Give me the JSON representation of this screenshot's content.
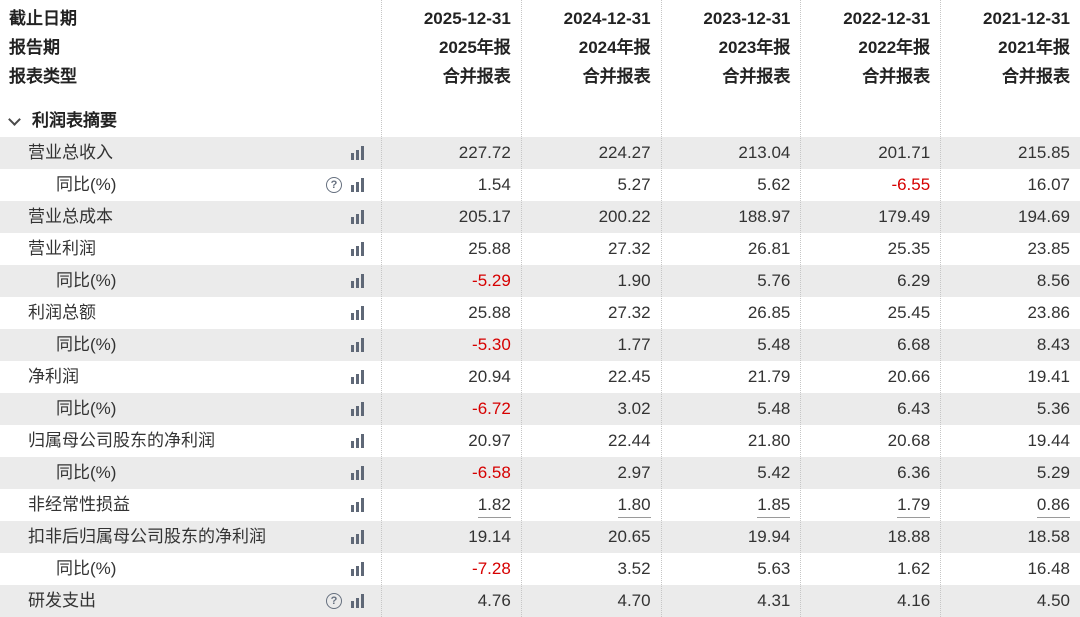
{
  "colors": {
    "negative_value": "#d60000",
    "text": "#333333",
    "shaded_row_bg": "#ebebeb",
    "icon": "#5f6877",
    "divider": "#c6c6c6"
  },
  "header": {
    "row_labels": [
      "截止日期",
      "报告期",
      "报表类型"
    ],
    "columns": [
      {
        "date": "2025-12-31",
        "period": "2025年报",
        "report_type": "合并报表"
      },
      {
        "date": "2024-12-31",
        "period": "2024年报",
        "report_type": "合并报表"
      },
      {
        "date": "2023-12-31",
        "period": "2023年报",
        "report_type": "合并报表"
      },
      {
        "date": "2022-12-31",
        "period": "2022年报",
        "report_type": "合并报表"
      },
      {
        "date": "2021-12-31",
        "period": "2021年报",
        "report_type": "合并报表"
      }
    ]
  },
  "section": {
    "label": "利润表摘要"
  },
  "rows": [
    {
      "label": "营业总收入",
      "indent": 1,
      "help_icon": false,
      "chart_icon": true,
      "underline": false,
      "values": [
        "227.72",
        "224.27",
        "213.04",
        "201.71",
        "215.85"
      ]
    },
    {
      "label": "同比(%)",
      "indent": 2,
      "help_icon": true,
      "chart_icon": true,
      "underline": false,
      "values": [
        "1.54",
        "5.27",
        "5.62",
        "-6.55",
        "16.07"
      ]
    },
    {
      "label": "营业总成本",
      "indent": 1,
      "help_icon": false,
      "chart_icon": true,
      "underline": false,
      "values": [
        "205.17",
        "200.22",
        "188.97",
        "179.49",
        "194.69"
      ]
    },
    {
      "label": "营业利润",
      "indent": 1,
      "help_icon": false,
      "chart_icon": true,
      "underline": false,
      "values": [
        "25.88",
        "27.32",
        "26.81",
        "25.35",
        "23.85"
      ]
    },
    {
      "label": "同比(%)",
      "indent": 2,
      "help_icon": false,
      "chart_icon": true,
      "underline": false,
      "values": [
        "-5.29",
        "1.90",
        "5.76",
        "6.29",
        "8.56"
      ]
    },
    {
      "label": "利润总额",
      "indent": 1,
      "help_icon": false,
      "chart_icon": true,
      "underline": false,
      "values": [
        "25.88",
        "27.32",
        "26.85",
        "25.45",
        "23.86"
      ]
    },
    {
      "label": "同比(%)",
      "indent": 2,
      "help_icon": false,
      "chart_icon": true,
      "underline": false,
      "values": [
        "-5.30",
        "1.77",
        "5.48",
        "6.68",
        "8.43"
      ]
    },
    {
      "label": "净利润",
      "indent": 1,
      "help_icon": false,
      "chart_icon": true,
      "underline": false,
      "values": [
        "20.94",
        "22.45",
        "21.79",
        "20.66",
        "19.41"
      ]
    },
    {
      "label": "同比(%)",
      "indent": 2,
      "help_icon": false,
      "chart_icon": true,
      "underline": false,
      "values": [
        "-6.72",
        "3.02",
        "5.48",
        "6.43",
        "5.36"
      ]
    },
    {
      "label": "归属母公司股东的净利润",
      "indent": 1,
      "help_icon": false,
      "chart_icon": true,
      "underline": false,
      "values": [
        "20.97",
        "22.44",
        "21.80",
        "20.68",
        "19.44"
      ]
    },
    {
      "label": "同比(%)",
      "indent": 2,
      "help_icon": false,
      "chart_icon": true,
      "underline": false,
      "values": [
        "-6.58",
        "2.97",
        "5.42",
        "6.36",
        "5.29"
      ]
    },
    {
      "label": "非经常性损益",
      "indent": 1,
      "help_icon": false,
      "chart_icon": true,
      "underline": true,
      "values": [
        "1.82",
        "1.80",
        "1.85",
        "1.79",
        "0.86"
      ]
    },
    {
      "label": "扣非后归属母公司股东的净利润",
      "indent": 1,
      "help_icon": false,
      "chart_icon": true,
      "underline": false,
      "values": [
        "19.14",
        "20.65",
        "19.94",
        "18.88",
        "18.58"
      ]
    },
    {
      "label": "同比(%)",
      "indent": 2,
      "help_icon": false,
      "chart_icon": true,
      "underline": false,
      "values": [
        "-7.28",
        "3.52",
        "5.63",
        "1.62",
        "16.48"
      ]
    },
    {
      "label": "研发支出",
      "indent": 1,
      "help_icon": true,
      "chart_icon": true,
      "underline": false,
      "values": [
        "4.76",
        "4.70",
        "4.31",
        "4.16",
        "4.50"
      ]
    }
  ]
}
